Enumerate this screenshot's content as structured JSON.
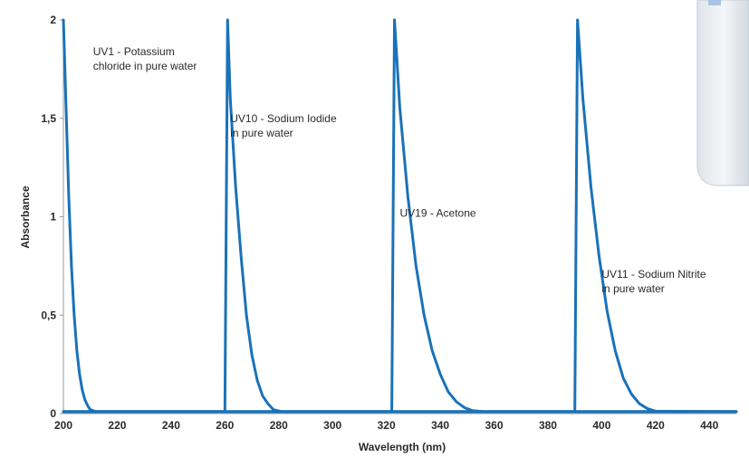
{
  "chart_data": {
    "type": "line",
    "xlabel": "Wavelength (nm)",
    "ylabel": "Absorbance",
    "xlim": [
      200,
      450
    ],
    "ylim": [
      0,
      2
    ],
    "xticks": [
      200,
      220,
      240,
      260,
      280,
      300,
      320,
      340,
      360,
      380,
      400,
      420,
      440
    ],
    "yticks": [
      0,
      0.5,
      1,
      1.5,
      2
    ],
    "ytick_labels": [
      "0",
      "0,5",
      "1",
      "1,5",
      "2"
    ],
    "grid": false,
    "line_color": "#1a72b8",
    "series": [
      {
        "name": "UV1 - Potassium chloride in pure water",
        "label_lines": [
          "UV1 - Potassium",
          "chloride in pure water"
        ],
        "points": [
          [
            200,
            2.0
          ],
          [
            201,
            1.55
          ],
          [
            202,
            1.1
          ],
          [
            203,
            0.75
          ],
          [
            204,
            0.5
          ],
          [
            205,
            0.32
          ],
          [
            206,
            0.2
          ],
          [
            207,
            0.12
          ],
          [
            208,
            0.07
          ],
          [
            209,
            0.04
          ],
          [
            210,
            0.02
          ],
          [
            212,
            0.01
          ],
          [
            450,
            0.01
          ]
        ]
      },
      {
        "name": "UV10 - Sodium Iodide in pure water",
        "label_lines": [
          "UV10 - Sodium Iodide",
          "in pure water"
        ],
        "points": [
          [
            200,
            0.01
          ],
          [
            260,
            0.01
          ],
          [
            261,
            2.0
          ],
          [
            262,
            1.6
          ],
          [
            264,
            1.15
          ],
          [
            266,
            0.8
          ],
          [
            268,
            0.5
          ],
          [
            270,
            0.3
          ],
          [
            272,
            0.17
          ],
          [
            274,
            0.09
          ],
          [
            276,
            0.05
          ],
          [
            278,
            0.02
          ],
          [
            281,
            0.01
          ],
          [
            450,
            0.01
          ]
        ]
      },
      {
        "name": "UV19 - Acetone",
        "label_lines": [
          "UV19 - Acetone"
        ],
        "points": [
          [
            200,
            0.01
          ],
          [
            322,
            0.01
          ],
          [
            323,
            2.0
          ],
          [
            325,
            1.55
          ],
          [
            328,
            1.1
          ],
          [
            331,
            0.75
          ],
          [
            334,
            0.5
          ],
          [
            337,
            0.32
          ],
          [
            340,
            0.2
          ],
          [
            343,
            0.11
          ],
          [
            346,
            0.06
          ],
          [
            349,
            0.03
          ],
          [
            352,
            0.015
          ],
          [
            356,
            0.01
          ],
          [
            450,
            0.01
          ]
        ]
      },
      {
        "name": "UV11 - Sodium Nitrite in pure water",
        "label_lines": [
          "UV11 - Sodium Nitrite",
          "in pure water"
        ],
        "points": [
          [
            200,
            0.01
          ],
          [
            390,
            0.01
          ],
          [
            391,
            2.0
          ],
          [
            393,
            1.6
          ],
          [
            396,
            1.15
          ],
          [
            399,
            0.8
          ],
          [
            402,
            0.52
          ],
          [
            405,
            0.32
          ],
          [
            408,
            0.18
          ],
          [
            411,
            0.1
          ],
          [
            414,
            0.05
          ],
          [
            417,
            0.025
          ],
          [
            420,
            0.012
          ],
          [
            450,
            0.01
          ]
        ]
      }
    ]
  }
}
